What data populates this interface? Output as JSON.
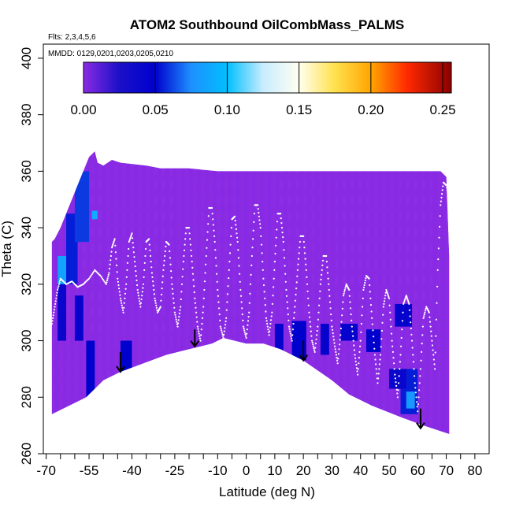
{
  "chart_data": {
    "type": "heatmap",
    "title": "ATOM2 Southbound OilCombMass_PALMS",
    "subtitle_flights": "Flts: 2,3,4,5,6",
    "subtitle_dates": "MMDD: 0129,0201,0203,0205,0210",
    "xlabel": "Latitude (deg N)",
    "ylabel": "Theta (C)",
    "xlim": [
      -71,
      85
    ],
    "ylim": [
      260,
      405
    ],
    "x_ticks_labeled": [
      "-70",
      "-55",
      "-40",
      "-25",
      "-10",
      "0",
      "10",
      "20",
      "30",
      "40",
      "50",
      "60",
      "70",
      "80"
    ],
    "x_tick_values": [
      -70,
      -55,
      -40,
      -25,
      -10,
      0,
      10,
      20,
      30,
      40,
      50,
      60,
      70,
      80
    ],
    "x_minor_ticks": [
      -65,
      -60,
      -50,
      -45,
      -35,
      -30,
      -20,
      -15,
      -5,
      5,
      15,
      25,
      35,
      45,
      55,
      65,
      75
    ],
    "y_ticks": [
      "260",
      "280",
      "300",
      "320",
      "340",
      "360",
      "380",
      "400"
    ],
    "y_tick_values": [
      260,
      280,
      300,
      320,
      340,
      360,
      380,
      400
    ],
    "colorbar": {
      "min": 0.0,
      "max": 0.256,
      "tick_values": [
        0.0,
        0.05,
        0.1,
        0.15,
        0.2,
        0.25
      ],
      "tick_labels": [
        "0.00",
        "0.05",
        "0.10",
        "0.15",
        "0.20",
        "0.25"
      ],
      "stops": [
        {
          "value": 0.0,
          "color": "#8a2be2"
        },
        {
          "value": 0.025,
          "color": "#1a10c8"
        },
        {
          "value": 0.05,
          "color": "#0000cd"
        },
        {
          "value": 0.075,
          "color": "#1e90ff"
        },
        {
          "value": 0.1,
          "color": "#00bfff"
        },
        {
          "value": 0.125,
          "color": "#c8ecff"
        },
        {
          "value": 0.15,
          "color": "#fffff0"
        },
        {
          "value": 0.175,
          "color": "#ffe14d"
        },
        {
          "value": 0.2,
          "color": "#ffa500"
        },
        {
          "value": 0.225,
          "color": "#ff2a00"
        },
        {
          "value": 0.256,
          "color": "#8b0000"
        }
      ]
    },
    "domain_upper_boundary": [
      [
        -68,
        335
      ],
      [
        -67,
        336
      ],
      [
        -65,
        340
      ],
      [
        -63,
        345
      ],
      [
        -61,
        350
      ],
      [
        -59,
        355
      ],
      [
        -57,
        360
      ],
      [
        -55,
        365
      ],
      [
        -53,
        367
      ],
      [
        -52,
        363
      ],
      [
        -50,
        362
      ],
      [
        -47,
        364
      ],
      [
        -44,
        363
      ],
      [
        -35,
        362
      ],
      [
        -30,
        361
      ],
      [
        -20,
        361
      ],
      [
        -10,
        360
      ],
      [
        0,
        360
      ],
      [
        10,
        360
      ],
      [
        20,
        360
      ],
      [
        30,
        360
      ],
      [
        40,
        360
      ],
      [
        50,
        360
      ],
      [
        60,
        360
      ],
      [
        68,
        360
      ],
      [
        70,
        358
      ],
      [
        71,
        330
      ]
    ],
    "tropopause_boundary": [
      [
        -68,
        274
      ],
      [
        -56,
        280
      ],
      [
        -50,
        286
      ],
      [
        -44,
        289
      ],
      [
        -36,
        292
      ],
      [
        -28,
        295
      ],
      [
        -20,
        297
      ],
      [
        -12,
        299
      ],
      [
        -8,
        301
      ],
      [
        0,
        299
      ],
      [
        6,
        299
      ],
      [
        12,
        297
      ],
      [
        20,
        293
      ],
      [
        30,
        286
      ],
      [
        36,
        281
      ],
      [
        44,
        277
      ],
      [
        54,
        273
      ],
      [
        62,
        270
      ],
      [
        71,
        267
      ]
    ],
    "high_value_patches": [
      {
        "lat0": -66,
        "lat1": -63,
        "theta0": 300,
        "theta1": 330,
        "value": 0.04
      },
      {
        "lat0": -63,
        "lat1": -59,
        "theta0": 320,
        "theta1": 345,
        "value": 0.055
      },
      {
        "lat0": -60,
        "lat1": -55,
        "theta0": 335,
        "theta1": 360,
        "value": 0.06
      },
      {
        "lat0": -66,
        "lat1": -63,
        "theta0": 320,
        "theta1": 330,
        "value": 0.085
      },
      {
        "lat0": -60,
        "lat1": -57,
        "theta0": 300,
        "theta1": 316,
        "value": 0.045
      },
      {
        "lat0": -56,
        "lat1": -53,
        "theta0": 280,
        "theta1": 300,
        "value": 0.05
      },
      {
        "lat0": -44,
        "lat1": -40,
        "theta0": 289,
        "theta1": 300,
        "value": 0.05
      },
      {
        "lat0": -54,
        "lat1": -52,
        "theta0": 343,
        "theta1": 346,
        "value": 0.09
      },
      {
        "lat0": 10,
        "lat1": 13,
        "theta0": 296,
        "theta1": 306,
        "value": 0.045
      },
      {
        "lat0": 16,
        "lat1": 21,
        "theta0": 293,
        "theta1": 307,
        "value": 0.05
      },
      {
        "lat0": 26,
        "lat1": 29,
        "theta0": 295,
        "theta1": 306,
        "value": 0.045
      },
      {
        "lat0": 33,
        "lat1": 39,
        "theta0": 300,
        "theta1": 306,
        "value": 0.045
      },
      {
        "lat0": 42,
        "lat1": 47,
        "theta0": 296,
        "theta1": 304,
        "value": 0.05
      },
      {
        "lat0": 52,
        "lat1": 58,
        "theta0": 305,
        "theta1": 313,
        "value": 0.045
      },
      {
        "lat0": 54,
        "lat1": 60,
        "theta0": 274,
        "theta1": 290,
        "value": 0.055
      },
      {
        "lat0": 56,
        "lat1": 59,
        "theta0": 276,
        "theta1": 282,
        "value": 0.08
      },
      {
        "lat0": 50,
        "lat1": 56,
        "theta0": 283,
        "theta1": 290,
        "value": 0.04
      }
    ],
    "flight_track": [
      [
        -68,
        306
      ],
      [
        -67,
        312
      ],
      [
        -66,
        318
      ],
      [
        -65,
        322
      ],
      [
        -63,
        320
      ],
      [
        -61,
        321
      ],
      [
        -59,
        319
      ],
      [
        -57,
        320
      ],
      [
        -55,
        322
      ],
      [
        -53,
        325
      ],
      [
        -51,
        323
      ],
      [
        -49,
        320
      ],
      [
        -48,
        324
      ],
      [
        -47,
        333
      ],
      [
        -46,
        336
      ],
      [
        -45,
        322
      ],
      [
        -44,
        315
      ],
      [
        -43,
        310
      ],
      [
        -42,
        320
      ],
      [
        -41,
        335
      ],
      [
        -40,
        338
      ],
      [
        -39,
        328
      ],
      [
        -38,
        318
      ],
      [
        -37,
        312
      ],
      [
        -36,
        320
      ],
      [
        -35,
        335
      ],
      [
        -34,
        336
      ],
      [
        -33,
        324
      ],
      [
        -32,
        315
      ],
      [
        -31,
        310
      ],
      [
        -30,
        312
      ],
      [
        -29,
        325
      ],
      [
        -28,
        335
      ],
      [
        -27,
        334
      ],
      [
        -26,
        320
      ],
      [
        -25,
        310
      ],
      [
        -24,
        305
      ],
      [
        -23,
        312
      ],
      [
        -22,
        328
      ],
      [
        -21,
        340
      ],
      [
        -20,
        340
      ],
      [
        -19,
        328
      ],
      [
        -18,
        315
      ],
      [
        -17,
        305
      ],
      [
        -16,
        300
      ],
      [
        -15,
        312
      ],
      [
        -14,
        330
      ],
      [
        -13,
        347
      ],
      [
        -12,
        347
      ],
      [
        -11,
        335
      ],
      [
        -10,
        318
      ],
      [
        -9,
        305
      ],
      [
        -8,
        301
      ],
      [
        -7,
        308
      ],
      [
        -6,
        325
      ],
      [
        -5,
        343
      ],
      [
        -4,
        344
      ],
      [
        -3,
        335
      ],
      [
        -2,
        318
      ],
      [
        -1,
        305
      ],
      [
        0,
        301
      ],
      [
        1,
        310
      ],
      [
        2,
        330
      ],
      [
        3,
        348
      ],
      [
        4,
        348
      ],
      [
        5,
        340
      ],
      [
        6,
        322
      ],
      [
        7,
        308
      ],
      [
        8,
        302
      ],
      [
        9,
        310
      ],
      [
        10,
        328
      ],
      [
        11,
        345
      ],
      [
        12,
        345
      ],
      [
        13,
        335
      ],
      [
        14,
        318
      ],
      [
        15,
        305
      ],
      [
        16,
        300
      ],
      [
        17,
        312
      ],
      [
        18,
        325
      ],
      [
        19,
        337
      ],
      [
        20,
        337
      ],
      [
        21,
        325
      ],
      [
        22,
        310
      ],
      [
        23,
        300
      ],
      [
        24,
        296
      ],
      [
        25,
        305
      ],
      [
        26,
        320
      ],
      [
        27,
        330
      ],
      [
        28,
        330
      ],
      [
        29,
        318
      ],
      [
        30,
        305
      ],
      [
        31,
        298
      ],
      [
        32,
        292
      ],
      [
        33,
        302
      ],
      [
        34,
        316
      ],
      [
        35,
        320
      ],
      [
        36,
        318
      ],
      [
        37,
        305
      ],
      [
        38,
        295
      ],
      [
        39,
        288
      ],
      [
        40,
        300
      ],
      [
        41,
        318
      ],
      [
        42,
        323
      ],
      [
        43,
        322
      ],
      [
        44,
        308
      ],
      [
        45,
        295
      ],
      [
        46,
        285
      ],
      [
        47,
        295
      ],
      [
        48,
        312
      ],
      [
        49,
        318
      ],
      [
        50,
        315
      ],
      [
        51,
        300
      ],
      [
        52,
        288
      ],
      [
        53,
        280
      ],
      [
        54,
        295
      ],
      [
        55,
        313
      ],
      [
        56,
        316
      ],
      [
        57,
        313
      ],
      [
        58,
        300
      ],
      [
        59,
        285
      ],
      [
        60,
        275
      ],
      [
        61,
        290
      ],
      [
        62,
        308
      ],
      [
        63,
        312
      ],
      [
        64,
        310
      ],
      [
        65,
        300
      ],
      [
        66,
        290
      ],
      [
        67,
        325
      ],
      [
        68,
        348
      ],
      [
        69,
        356
      ],
      [
        70,
        355
      ],
      [
        71,
        350
      ]
    ],
    "arrows": [
      {
        "lat": -44,
        "theta_top": 296,
        "theta_bottom": 289
      },
      {
        "lat": -18,
        "theta_top": 304,
        "theta_bottom": 298
      },
      {
        "lat": 20,
        "theta_top": 300,
        "theta_bottom": 293
      },
      {
        "lat": 61,
        "theta_top": 276,
        "theta_bottom": 269
      }
    ]
  }
}
